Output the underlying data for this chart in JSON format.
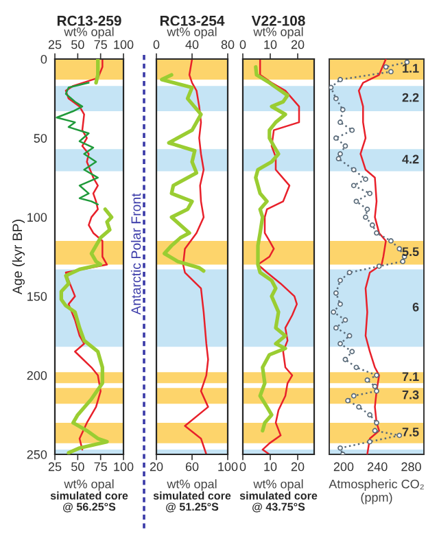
{
  "chart_data": [
    {
      "type": "line",
      "orientation": "horizontal",
      "title": "RC13-259",
      "x2label": "wt% opal",
      "x2lim": [
        25,
        100
      ],
      "x2ticks": [
        25,
        50,
        75,
        100
      ],
      "xlabel": "wt% opal",
      "xlim": [
        25,
        100
      ],
      "xticks": [
        25,
        50,
        75,
        100
      ],
      "ylabel": "Age (kyr BP)",
      "ylim": [
        250,
        0
      ],
      "yticks": [
        0,
        50,
        100,
        150,
        200,
        250
      ],
      "grid": false,
      "annotations": [
        "simulated core\n@ 56.25°S",
        "Antarctic Polar Front"
      ],
      "bands": [
        {
          "axis": "y",
          "from": 0,
          "to": 13,
          "color": "#fdd46b"
        },
        {
          "axis": "y",
          "from": 17,
          "to": 33,
          "color": "#c5e4f5"
        },
        {
          "axis": "y",
          "from": 57,
          "to": 71,
          "color": "#c5e4f5"
        },
        {
          "axis": "y",
          "from": 115,
          "to": 130,
          "color": "#fdd46b"
        },
        {
          "axis": "y",
          "from": 133,
          "to": 182,
          "color": "#c5e4f5"
        },
        {
          "axis": "y",
          "from": 198,
          "to": 205,
          "color": "#fdd46b"
        },
        {
          "axis": "y",
          "from": 208,
          "to": 218,
          "color": "#fdd46b"
        },
        {
          "axis": "y",
          "from": 230,
          "to": 243,
          "color": "#fdd46b"
        },
        {
          "axis": "y",
          "from": 247,
          "to": 250,
          "color": "#c5e4f5"
        }
      ],
      "series": [
        {
          "color": "#9acd32",
          "axis": "x2",
          "x": [
            0,
            10,
            15,
            90,
            95,
            100,
            103,
            108,
            113,
            118,
            123,
            128,
            130,
            133,
            137,
            142,
            147,
            152,
            156,
            160,
            170,
            178,
            185,
            195,
            205,
            215,
            225,
            230,
            235,
            240,
            242,
            246,
            249
          ],
          "values": [
            72,
            72,
            70,
            null,
            80,
            87,
            82,
            85,
            75,
            70,
            65,
            70,
            75,
            52,
            37,
            40,
            32,
            32,
            37,
            47,
            52,
            57,
            72,
            77,
            77,
            65,
            50,
            45,
            60,
            72,
            82,
            52,
            40
          ]
        },
        {
          "color": "#1f9a3a",
          "axis": "x2",
          "x": [
            15,
            18,
            22,
            27,
            30,
            33,
            37,
            40,
            43,
            47,
            52,
            56,
            60,
            65,
            70,
            75,
            80,
            85,
            88,
            90,
            92
          ],
          "values": [
            62,
            40,
            37,
            47,
            55,
            45,
            27,
            47,
            40,
            62,
            52,
            67,
            57,
            70,
            57,
            72,
            52,
            62,
            52,
            65,
            72
          ]
        },
        {
          "color": "#e8202a",
          "x": [
            0,
            5,
            12,
            17,
            20,
            25,
            30,
            35,
            45,
            50,
            55,
            60,
            65,
            75,
            80,
            85,
            90,
            95,
            100,
            105,
            110,
            115,
            125,
            130,
            135,
            140,
            150,
            155,
            165,
            175,
            180,
            185,
            195,
            200,
            210,
            220,
            230,
            240,
            247
          ],
          "values": [
            77,
            77,
            72,
            45,
            37,
            40,
            52,
            57,
            55,
            60,
            55,
            62,
            60,
            67,
            72,
            67,
            70,
            72,
            65,
            62,
            67,
            77,
            77,
            82,
            37,
            40,
            47,
            40,
            47,
            52,
            57,
            47,
            65,
            72,
            75,
            70,
            60,
            52,
            55
          ]
        }
      ]
    },
    {
      "type": "line",
      "orientation": "horizontal",
      "title": "RC13-254",
      "x2label": "wt% opal",
      "x2lim": [
        0,
        80
      ],
      "x2ticks": [
        0,
        40,
        80
      ],
      "xlabel": "wt% opal",
      "xlim": [
        20,
        100
      ],
      "xticks": [
        20,
        60,
        100
      ],
      "ylim": [
        250,
        0
      ],
      "yticks": [
        0,
        50,
        100,
        150,
        200,
        250
      ],
      "tick_labels": "x",
      "grid": false,
      "annotations": [
        "simulated core\n@ 51.25°S"
      ],
      "bands": [
        {
          "axis": "y",
          "from": 0,
          "to": 13,
          "color": "#fdd46b"
        },
        {
          "axis": "y",
          "from": 17,
          "to": 33,
          "color": "#c5e4f5"
        },
        {
          "axis": "y",
          "from": 57,
          "to": 71,
          "color": "#c5e4f5"
        },
        {
          "axis": "y",
          "from": 115,
          "to": 130,
          "color": "#fdd46b"
        },
        {
          "axis": "y",
          "from": 133,
          "to": 182,
          "color": "#c5e4f5"
        },
        {
          "axis": "y",
          "from": 198,
          "to": 205,
          "color": "#fdd46b"
        },
        {
          "axis": "y",
          "from": 208,
          "to": 218,
          "color": "#fdd46b"
        },
        {
          "axis": "y",
          "from": 230,
          "to": 243,
          "color": "#fdd46b"
        },
        {
          "axis": "y",
          "from": 247,
          "to": 250,
          "color": "#c5e4f5"
        }
      ],
      "series": [
        {
          "color": "#9acd32",
          "axis": "x2",
          "x": [
            10,
            13,
            18,
            25,
            35,
            45,
            53,
            58,
            65,
            72,
            80,
            85,
            90,
            95,
            100,
            105,
            110,
            113,
            118,
            123,
            128,
            132,
            134
          ],
          "values": [
            17,
            6,
            40,
            35,
            50,
            40,
            14,
            43,
            40,
            45,
            19,
            17,
            40,
            35,
            17,
            27,
            37,
            27,
            17,
            9,
            24,
            48,
            53
          ]
        },
        {
          "color": "#e8202a",
          "x": [
            0,
            10,
            15,
            20,
            30,
            40,
            50,
            60,
            70,
            80,
            90,
            100,
            110,
            120,
            130,
            135,
            145,
            160,
            180,
            190,
            200,
            210,
            220,
            232,
            240,
            250
          ],
          "values": [
            60,
            57,
            60,
            65,
            68,
            70,
            68,
            70,
            73,
            69,
            70,
            73,
            65,
            52,
            50,
            52,
            70,
            73,
            76,
            78,
            76,
            70,
            78,
            52,
            70,
            76
          ]
        }
      ]
    },
    {
      "type": "line",
      "orientation": "horizontal",
      "title": "V22-108",
      "x2label": "wt% opal",
      "x2lim": [
        0,
        26
      ],
      "x2ticks": [
        0,
        10,
        20
      ],
      "xlabel": "wt% opal",
      "xlim": [
        0,
        26
      ],
      "xticks": [
        0,
        10,
        20
      ],
      "ylim": [
        250,
        0
      ],
      "yticks": [
        0,
        50,
        100,
        150,
        200,
        250
      ],
      "tick_labels": "x",
      "grid": false,
      "annotations": [
        "simulated core\n@ 43.75°S"
      ],
      "bands": [
        {
          "axis": "y",
          "from": 0,
          "to": 13,
          "color": "#fdd46b"
        },
        {
          "axis": "y",
          "from": 17,
          "to": 33,
          "color": "#c5e4f5"
        },
        {
          "axis": "y",
          "from": 57,
          "to": 71,
          "color": "#c5e4f5"
        },
        {
          "axis": "y",
          "from": 115,
          "to": 130,
          "color": "#fdd46b"
        },
        {
          "axis": "y",
          "from": 133,
          "to": 182,
          "color": "#c5e4f5"
        },
        {
          "axis": "y",
          "from": 198,
          "to": 205,
          "color": "#fdd46b"
        },
        {
          "axis": "y",
          "from": 208,
          "to": 218,
          "color": "#fdd46b"
        },
        {
          "axis": "y",
          "from": 230,
          "to": 243,
          "color": "#fdd46b"
        },
        {
          "axis": "y",
          "from": 247,
          "to": 250,
          "color": "#c5e4f5"
        }
      ],
      "series": [
        {
          "color": "#9acd32",
          "axis": "x2",
          "x": [
            5,
            10,
            15,
            20,
            23,
            27,
            30,
            35,
            40,
            45,
            50,
            55,
            60,
            65,
            70,
            75,
            80,
            85,
            90,
            95,
            100,
            110,
            118,
            125,
            130,
            135,
            140,
            145,
            150,
            160,
            170,
            175,
            180,
            183,
            187,
            195,
            205,
            213,
            220,
            225,
            230,
            235
          ],
          "values": [
            4.7,
            5,
            9.7,
            13.8,
            16.3,
            14.7,
            10.5,
            15.5,
            12,
            9.7,
            9.7,
            11.3,
            13,
            10.5,
            5.5,
            4.7,
            5.5,
            6.3,
            8.8,
            6.3,
            7.2,
            6.3,
            5.5,
            5.5,
            5.5,
            6.3,
            10.5,
            12,
            10.5,
            13,
            12,
            15.5,
            12,
            15.5,
            9.7,
            7.2,
            8,
            6.3,
            8.8,
            10.5,
            8,
            7.2
          ]
        },
        {
          "color": "#e8202a",
          "x": [
            0,
            10,
            15,
            20,
            25,
            30,
            40,
            45,
            55,
            62,
            70,
            80,
            90,
            95,
            100,
            110,
            115,
            120,
            125,
            130,
            135,
            142,
            150,
            155,
            162,
            170,
            178,
            185,
            195,
            200,
            205,
            213,
            222,
            230,
            238,
            243,
            247,
            250
          ],
          "values": [
            6.3,
            6.3,
            10.5,
            15.5,
            18,
            20.5,
            20.5,
            11.3,
            10.5,
            12,
            12,
            17,
            14.7,
            8.8,
            8,
            8,
            9.7,
            11.3,
            9.7,
            5.5,
            8.8,
            13.8,
            18.8,
            19.7,
            18,
            15.5,
            16.3,
            14.7,
            15.5,
            18,
            16.3,
            15.5,
            13,
            12,
            13.8,
            9.7,
            7.2,
            9.7
          ]
        }
      ]
    },
    {
      "type": "line",
      "orientation": "horizontal",
      "xlabel": "Atmospheric CO₂\n(ppm)",
      "xlim": [
        183,
        295
      ],
      "xticks": [
        200,
        240,
        280
      ],
      "ylim": [
        250,
        0
      ],
      "yticks": [
        0,
        50,
        100,
        150,
        200,
        250
      ],
      "tick_labels": "x",
      "grid": false,
      "bands": [
        {
          "axis": "y",
          "from": 0,
          "to": 13,
          "color": "#fdd46b",
          "label": "1.1"
        },
        {
          "axis": "y",
          "from": 17,
          "to": 33,
          "color": "#c5e4f5",
          "label": "2.2"
        },
        {
          "axis": "y",
          "from": 57,
          "to": 71,
          "color": "#c5e4f5",
          "label": "4.2"
        },
        {
          "axis": "y",
          "from": 115,
          "to": 130,
          "color": "#fdd46b",
          "label": "5.5"
        },
        {
          "axis": "y",
          "from": 133,
          "to": 182,
          "color": "#c5e4f5",
          "label": "6"
        },
        {
          "axis": "y",
          "from": 198,
          "to": 205,
          "color": "#fdd46b",
          "label": "7.1"
        },
        {
          "axis": "y",
          "from": 208,
          "to": 218,
          "color": "#fdd46b",
          "label": "7.3"
        },
        {
          "axis": "y",
          "from": 230,
          "to": 243,
          "color": "#fdd46b",
          "label": "7.5"
        },
        {
          "axis": "y",
          "from": 247,
          "to": 250,
          "color": "#c5e4f5"
        }
      ],
      "series": [
        {
          "color": "#e8202a",
          "x": [
            0,
            10,
            15,
            20,
            30,
            40,
            50,
            60,
            70,
            75,
            90,
            100,
            110,
            115,
            125,
            130,
            135,
            145,
            160,
            175,
            185,
            195,
            200,
            210,
            220,
            230,
            235,
            240,
            250
          ],
          "values": [
            250,
            242,
            223,
            218,
            223,
            223,
            226,
            220,
            226,
            237,
            239,
            237,
            242,
            250,
            247,
            245,
            231,
            226,
            228,
            226,
            231,
            237,
            242,
            239,
            237,
            239,
            242,
            231,
            228
          ]
        },
        {
          "color": "#5a6b7a",
          "marker": "circle",
          "line_style": "dotted",
          "x": [
            2,
            5,
            8,
            13,
            18,
            25,
            32,
            40,
            45,
            50,
            55,
            60,
            63,
            70,
            76,
            80,
            85,
            90,
            95,
            100,
            105,
            110,
            115,
            120,
            125,
            128,
            131,
            135,
            140,
            148,
            155,
            160,
            165,
            170,
            175,
            180,
            185,
            190,
            195,
            200,
            203,
            207,
            210,
            213,
            216,
            220,
            225,
            230,
            235,
            238,
            242,
            246,
            250
          ],
          "values": [
            275,
            250,
            256,
            196,
            185,
            191,
            199,
            196,
            210,
            191,
            202,
            196,
            194,
            212,
            226,
            212,
            231,
            215,
            228,
            226,
            234,
            239,
            256,
            266,
            272,
            270,
            242,
            207,
            196,
            191,
            196,
            188,
            202,
            191,
            207,
            196,
            210,
            202,
            215,
            239,
            228,
            237,
            239,
            212,
            205,
            218,
            231,
            239,
            237,
            266,
            231,
            196,
            199
          ]
        }
      ]
    }
  ]
}
